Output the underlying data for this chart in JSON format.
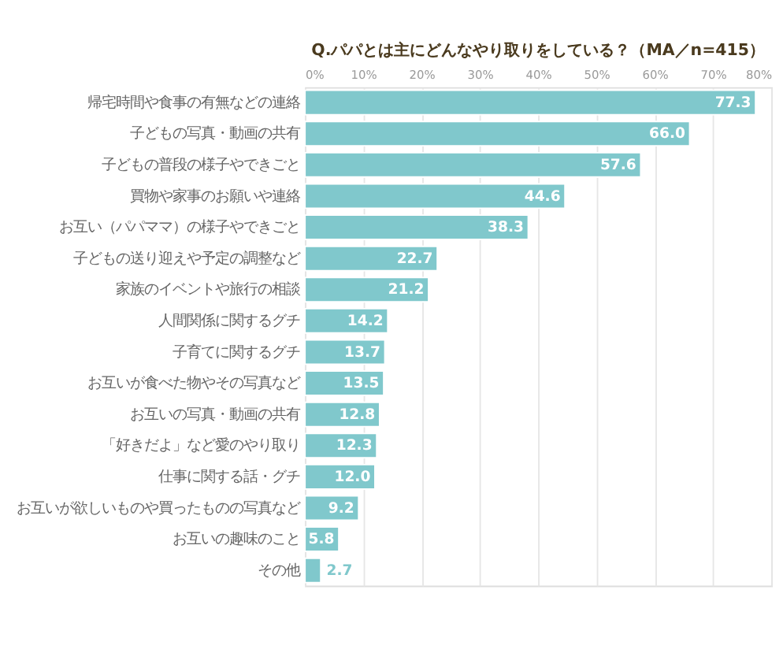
{
  "chart_data": {
    "type": "bar",
    "orientation": "horizontal",
    "title": "Q.パパとは主にどんなやり取りをしている？（MA／n=415）",
    "categories": [
      "帰宅時間や食事の有無などの連絡",
      "子どもの写真・動画の共有",
      "子どもの普段の様子やできごと",
      "買物や家事のお願いや連絡",
      "お互い（パパママ）の様子やできごと",
      "子どもの送り迎えや予定の調整など",
      "家族のイベントや旅行の相談",
      "人間関係に関するグチ",
      "子育てに関するグチ",
      "お互いが食べた物やその写真など",
      "お互いの写真・動画の共有",
      "「好きだよ」など愛のやり取り",
      "仕事に関する話・グチ",
      "お互いが欲しいものや買ったものの写真など",
      "お互いの趣味のこと",
      "その他"
    ],
    "values": [
      77.3,
      66.0,
      57.6,
      44.6,
      38.3,
      22.7,
      21.2,
      14.2,
      13.7,
      13.5,
      12.8,
      12.3,
      12.0,
      9.2,
      5.8,
      2.7
    ],
    "value_labels": [
      "77.3",
      "66.0",
      "57.6",
      "44.6",
      "38.3",
      "22.7",
      "21.2",
      "14.2",
      "13.7",
      "13.5",
      "12.8",
      "12.3",
      "12.0",
      "9.2",
      "5.8",
      "2.7"
    ],
    "color": "#80c8cc",
    "xlim": [
      0,
      80
    ],
    "xticks": [
      {
        "value": 0,
        "label": "0%"
      },
      {
        "value": 10,
        "label": "10%"
      },
      {
        "value": 20,
        "label": "20%"
      },
      {
        "value": 30,
        "label": "30%"
      },
      {
        "value": 40,
        "label": "40%"
      },
      {
        "value": 50,
        "label": "50%"
      },
      {
        "value": 60,
        "label": "60%"
      },
      {
        "value": 70,
        "label": "70%"
      },
      {
        "value": 80,
        "label": "80%"
      }
    ],
    "grid": "x"
  }
}
